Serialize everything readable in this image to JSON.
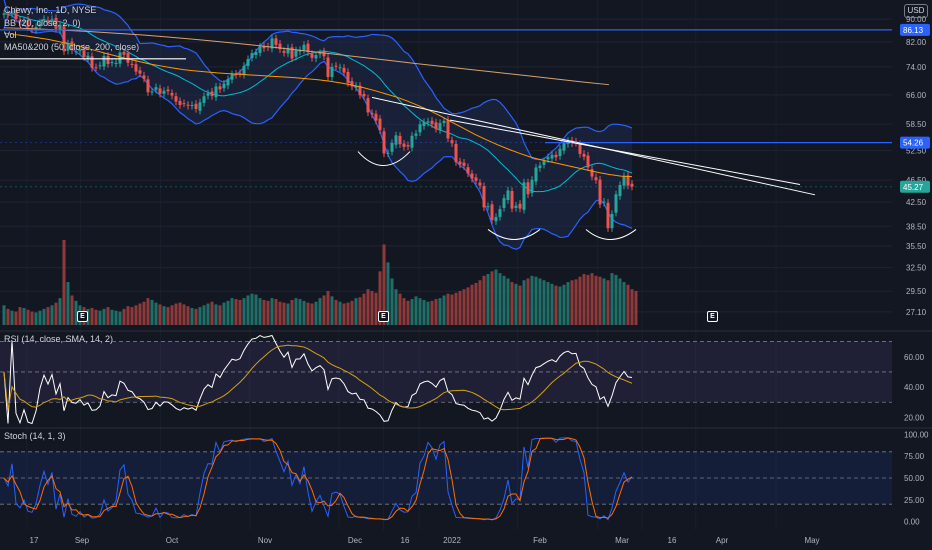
{
  "header": {
    "symbol_line": "Chewy, Inc., 1D, NYSE",
    "bb_line": "BB (20, close, 2, 0)",
    "vol_line": "Vol",
    "ma_line": "MA50&200 (50, close, 200, close)",
    "currency_badge": "USD"
  },
  "panes": {
    "rsi_label": "RSI (14, close, SMA, 14, 2)",
    "stoch_label": "Stoch (14, 1, 3)"
  },
  "earnings_markers": [
    {
      "label": "E",
      "date": "Aug 26"
    },
    {
      "label": "E",
      "date": "Dec 8"
    },
    {
      "label": "E",
      "date": "Mar 23"
    }
  ],
  "colors": {
    "background": "#131722",
    "up_candle": "#26a69a",
    "down_candle": "#ef5350",
    "bb_band": "#2962ff",
    "bb_fill": "#1e2a4a",
    "ma50": "#ff9800",
    "ma200": "#d4a373",
    "bb_basis": "#00bcd4",
    "horizontal_lines": "#2962ff",
    "trendlines": "#ffffff",
    "rsi_line": "#ffffff",
    "rsi_ma": "#d4a017",
    "stoch_k": "#2962ff",
    "stoch_d": "#ff6d00"
  },
  "chart_data": {
    "type": "candlestick",
    "title": "Chewy, Inc., 1D, NYSE",
    "x_ticks": [
      "17",
      "Sep",
      "Oct",
      "Nov",
      "Dec",
      "16",
      "2022",
      "Feb",
      "Mar",
      "16",
      "Apr",
      "May"
    ],
    "price_axis": {
      "ticks": [
        90.0,
        82.0,
        74.0,
        66.0,
        58.5,
        52.5,
        46.5,
        42.5,
        38.5,
        35.5,
        32.5,
        29.5,
        27.1
      ],
      "scale": "log",
      "range": [
        26,
        95
      ]
    },
    "price_labels": [
      {
        "value": 86.13,
        "label": "86.13",
        "color": "#2962ff"
      },
      {
        "value": 54.26,
        "label": "54.26",
        "color": "#2962ff"
      },
      {
        "value": 45.27,
        "label": "45.27",
        "color": "#26a69a"
      }
    ],
    "horizontal_levels": [
      86.13,
      54.26
    ],
    "candles_close": [
      92.1,
      91.7,
      92.6,
      90.1,
      88.8,
      89.3,
      87.1,
      86.3,
      87.1,
      88.8,
      90.1,
      88.9,
      90.0,
      86.6,
      88.0,
      78.9,
      81.5,
      79.2,
      78.9,
      79.6,
      77.1,
      77.5,
      73.7,
      73.8,
      74.5,
      77.4,
      74.9,
      75.5,
      75.2,
      78.5,
      77.8,
      75.3,
      74.8,
      72.6,
      72.0,
      70.5,
      66.7,
      66.9,
      68.1,
      66.3,
      67.1,
      67.0,
      65.8,
      64.2,
      63.3,
      63.7,
      63.1,
      63.3,
      62.3,
      64.0,
      65.6,
      66.4,
      65.7,
      68.3,
      67.5,
      69.1,
      70.4,
      71.8,
      71.6,
      72.0,
      74.3,
      76.4,
      78.3,
      78.6,
      80.4,
      79.9,
      80.2,
      83.2,
      81.0,
      79.6,
      78.4,
      80.0,
      76.6,
      79.2,
      79.3,
      81.0,
      78.6,
      76.8,
      77.7,
      78.3,
      77.3,
      71.0,
      74.0,
      74.2,
      73.9,
      72.3,
      69.3,
      68.3,
      68.5,
      65.9,
      65.6,
      61.4,
      60.9,
      59.4,
      57.1,
      51.9,
      52.0,
      54.2,
      55.9,
      53.9,
      53.3,
      53.4,
      55.8,
      56.3,
      58.5,
      59.0,
      59.2,
      58.5,
      57.4,
      58.8,
      59.3,
      55.2,
      54.1,
      50.1,
      49.6,
      49.3,
      47.8,
      46.8,
      46.4,
      45.5,
      41.6,
      41.8,
      39.5,
      40.0,
      41.3,
      43.2,
      44.6,
      41.4,
      41.9,
      41.4,
      46.1,
      43.9,
      46.6,
      49.0,
      49.4,
      50.3,
      51.1,
      51.6,
      51.1,
      52.9,
      54.1,
      54.6,
      54.1,
      54.2,
      51.8,
      51.2,
      49.0,
      47.2,
      46.5,
      42.1,
      42.6,
      38.2,
      40.5,
      43.9,
      45.6,
      47.3,
      45.5,
      45.3
    ],
    "volume": [
      22,
      18,
      16,
      15,
      20,
      19,
      17,
      15,
      14,
      16,
      18,
      20,
      22,
      25,
      30,
      95,
      48,
      33,
      27,
      22,
      20,
      18,
      19,
      17,
      16,
      18,
      20,
      17,
      16,
      15,
      18,
      21,
      20,
      22,
      24,
      26,
      30,
      28,
      25,
      23,
      21,
      20,
      22,
      24,
      25,
      23,
      21,
      19,
      18,
      20,
      22,
      24,
      26,
      23,
      22,
      25,
      27,
      30,
      29,
      28,
      30,
      33,
      35,
      34,
      30,
      28,
      27,
      30,
      29,
      26,
      25,
      24,
      28,
      30,
      29,
      27,
      25,
      24,
      26,
      30,
      33,
      38,
      32,
      28,
      26,
      24,
      25,
      27,
      30,
      31,
      35,
      40,
      38,
      36,
      60,
      90,
      70,
      52,
      40,
      35,
      30,
      27,
      29,
      32,
      30,
      28,
      26,
      27,
      29,
      30,
      33,
      35,
      34,
      36,
      38,
      40,
      42,
      45,
      47,
      50,
      55,
      57,
      60,
      62,
      58,
      55,
      52,
      48,
      46,
      44,
      50,
      52,
      55,
      54,
      52,
      50,
      48,
      46,
      44,
      43,
      45,
      48,
      50,
      51,
      54,
      57,
      56,
      58,
      55,
      54,
      52,
      50,
      58,
      56,
      52,
      48,
      45,
      40,
      38
    ],
    "ma50": [
      85,
      84.5,
      84,
      83.4,
      82.8,
      82,
      81.2,
      80.3,
      79.3,
      78.3,
      77.4,
      76.5,
      75.7,
      74.9,
      74.3,
      73.7,
      73.2,
      72.8,
      72.5,
      72.2,
      72.0,
      71.8,
      71.6,
      71.4,
      71.2,
      71.0,
      70.8,
      70.5,
      70.2,
      69.8,
      69.3,
      68.7,
      68.0,
      67.2,
      66.3,
      65.4,
      64.3,
      63.1,
      61.8,
      60.4,
      58.9,
      57.5,
      56.1,
      54.9,
      53.8,
      52.8,
      51.9,
      51.1,
      50.5,
      50.0,
      49.5,
      49.0,
      48.5,
      48.0,
      47.6,
      47.3,
      47.2
    ],
    "ma200": [
      86.9,
      86.6,
      86.1,
      85.6,
      85.0,
      84.4,
      83.6,
      82.8,
      81.9,
      81.0,
      80.0,
      79.0,
      78.0,
      77.0,
      76.0,
      75.0,
      74.1,
      73.2,
      72.3,
      71.4,
      70.5,
      69.6,
      68.8
    ],
    "rsi": {
      "ylim": [
        15,
        75
      ],
      "ticks": [
        60.0,
        40.0,
        20.0
      ],
      "bands": [
        70,
        50,
        30
      ]
    },
    "stoch": {
      "ylim": [
        -5,
        105
      ],
      "ticks": [
        100.0,
        75.0,
        50.0,
        25.0,
        0.0
      ],
      "bands": [
        80,
        50,
        20
      ]
    }
  }
}
